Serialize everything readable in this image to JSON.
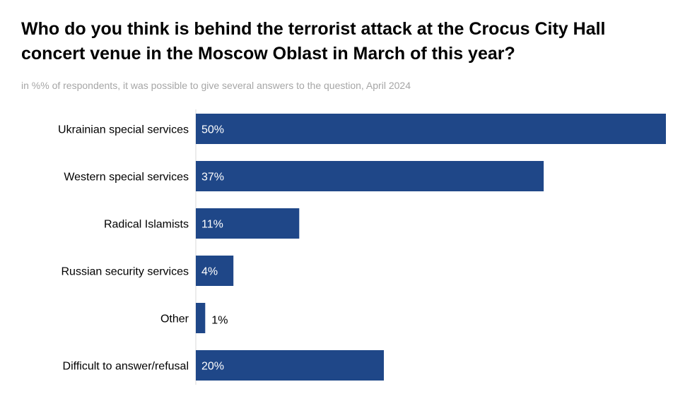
{
  "title": "Who do you think is behind the terrorist attack at the Crocus City Hall concert venue in the Moscow Oblast in March of this year?",
  "subtitle": "in %% of respondents, it was possible to give several answers to the question, April 2024",
  "colors": {
    "bar": "#1f4788",
    "label_inside": "#ffffff",
    "label_outside": "#000000"
  },
  "chart_data": {
    "type": "bar",
    "orientation": "horizontal",
    "categories": [
      "Ukrainian special services",
      "Western special services",
      "Radical Islamists",
      "Russian security services",
      "Other",
      "Difficult to answer/refusal"
    ],
    "values": [
      50,
      37,
      11,
      4,
      1,
      20
    ],
    "value_labels": [
      "50%",
      "37%",
      "11%",
      "4%",
      "1%",
      "20%"
    ],
    "xlim": [
      0,
      50
    ],
    "grid": false,
    "legend": "none"
  }
}
